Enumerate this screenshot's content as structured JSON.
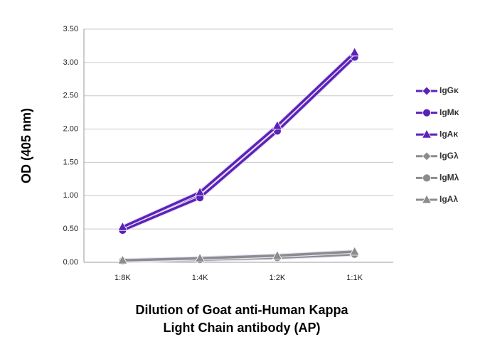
{
  "chart_data": {
    "type": "line",
    "ylabel": "OD (405 nm)",
    "xlabel": [
      "Dilution of Goat anti-Human Kappa",
      "Light Chain antibody (AP)"
    ],
    "categories": [
      "1:8K",
      "1:4K",
      "1:2K",
      "1:1K"
    ],
    "ylim": [
      0,
      3.5
    ],
    "yticks": [
      {
        "value": 0,
        "label": "0.00"
      },
      {
        "value": 0.5,
        "label": "0.50"
      },
      {
        "value": 1,
        "label": "1.00"
      },
      {
        "value": 1.5,
        "label": "1.50"
      },
      {
        "value": 2,
        "label": "2.00"
      },
      {
        "value": 2.5,
        "label": "2.50"
      },
      {
        "value": 3,
        "label": "3.00"
      },
      {
        "value": 3.5,
        "label": "3.50"
      }
    ],
    "grid": true,
    "legend": "right",
    "series": [
      {
        "name": "IgGκ",
        "color": "#5b22b8",
        "marker": "diamond",
        "values": [
          0.5,
          1.02,
          2.02,
          3.13
        ]
      },
      {
        "name": "IgMκ",
        "color": "#5b22b8",
        "marker": "circle",
        "values": [
          0.48,
          0.97,
          1.97,
          3.08
        ]
      },
      {
        "name": "IgAκ",
        "color": "#5b22b8",
        "marker": "triangle",
        "values": [
          0.53,
          1.05,
          2.05,
          3.15
        ]
      },
      {
        "name": "IgGλ",
        "color": "#8c8c8c",
        "marker": "diamond",
        "values": [
          0.03,
          0.05,
          0.08,
          0.13
        ]
      },
      {
        "name": "IgMλ",
        "color": "#8c8c8c",
        "marker": "circle",
        "values": [
          0.02,
          0.04,
          0.07,
          0.12
        ]
      },
      {
        "name": "IgAλ",
        "color": "#8c8c8c",
        "marker": "triangle",
        "values": [
          0.03,
          0.06,
          0.1,
          0.16
        ]
      }
    ]
  }
}
